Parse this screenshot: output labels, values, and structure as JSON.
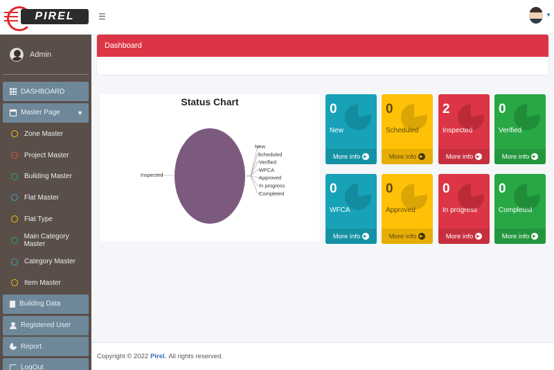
{
  "brand": {
    "logo_text": "PIREL"
  },
  "user": {
    "name": "Admin"
  },
  "sidebar": {
    "items": [
      {
        "label": "DASHBOARD",
        "icon": "dashboard-grid-icon"
      },
      {
        "label": "Master Page",
        "icon": "window-icon"
      },
      {
        "label": "Zone Master",
        "circle_color": "#f1c40f"
      },
      {
        "label": "Project Master",
        "circle_color": "#e74c3c"
      },
      {
        "label": "Building Master",
        "circle_color": "#27ae60"
      },
      {
        "label": "Flat Master",
        "circle_color": "#3fa7c4"
      },
      {
        "label": "Flat Type",
        "circle_color": "#f1c40f"
      },
      {
        "label": "Main Category Master",
        "circle_color": "#27ae60"
      },
      {
        "label": "Category Master",
        "circle_color": "#3fa7c4"
      },
      {
        "label": "Item Master",
        "circle_color": "#f1c40f"
      },
      {
        "label": "Building Data",
        "icon": "building-icon"
      },
      {
        "label": "Registered User",
        "icon": "user-icon"
      },
      {
        "label": "Report",
        "icon": "pie-chart-icon"
      },
      {
        "label": "LogOut",
        "icon": "logout-icon"
      }
    ]
  },
  "header": {
    "title": "Dashboard"
  },
  "chart_data": {
    "type": "pie",
    "title": "Status Chart",
    "categories": [
      "New",
      "Scheduled",
      "Verified",
      "WFCA",
      "Approved",
      "In progress",
      "Completed",
      "Inspected"
    ],
    "values": [
      0,
      0,
      0,
      0,
      0,
      0,
      0,
      2
    ],
    "colors": {
      "Inspected": "#7b5a7e"
    }
  },
  "tiles": [
    {
      "count": "0",
      "label": "New",
      "color": "teal"
    },
    {
      "count": "0",
      "label": "Scheduled",
      "color": "yellow"
    },
    {
      "count": "2",
      "label": "Inspected",
      "color": "red"
    },
    {
      "count": "0",
      "label": "Verified",
      "color": "green"
    },
    {
      "count": "0",
      "label": "WFCA",
      "color": "teal"
    },
    {
      "count": "0",
      "label": "Approved",
      "color": "yellow"
    },
    {
      "count": "0",
      "label": "In progress",
      "color": "red"
    },
    {
      "count": "0",
      "label": "Completed",
      "color": "green"
    }
  ],
  "more_info_label": "More info",
  "footer": {
    "prefix": "Copyright © 2022",
    "brand": "Pirel.",
    "suffix": "All rights reserved."
  }
}
